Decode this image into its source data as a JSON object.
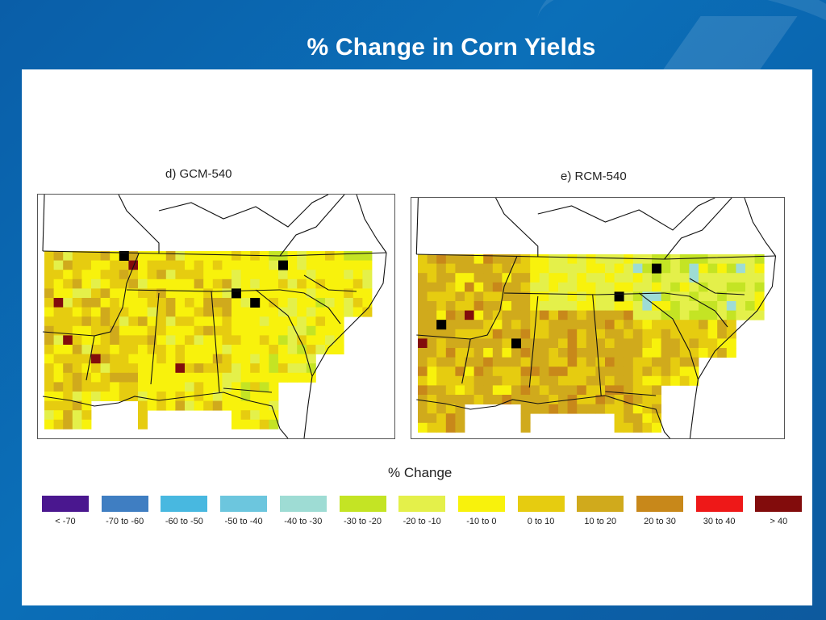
{
  "slide_title": "% Change in Corn Yields",
  "maps": [
    {
      "title": "d) GCM-540",
      "variant": "gcm"
    },
    {
      "title": "e) RCM-540",
      "variant": "rcm"
    }
  ],
  "legend": {
    "title": "% Change",
    "items": [
      {
        "label": "< -70",
        "color": "#4a178f"
      },
      {
        "label": "-70 to -60",
        "color": "#3f7ec2"
      },
      {
        "label": "-60 to -50",
        "color": "#48b8e0"
      },
      {
        "label": "-50 to -40",
        "color": "#6cc6de"
      },
      {
        "label": "-40 to -30",
        "color": "#9edcd4"
      },
      {
        "label": "-30 to -20",
        "color": "#c4e424"
      },
      {
        "label": "-20 to -10",
        "color": "#e4f04a"
      },
      {
        "label": "-10 to 0",
        "color": "#f8f20c"
      },
      {
        "label": "0 to 10",
        "color": "#e6cc10"
      },
      {
        "label": "10 to 20",
        "color": "#d0aa1c"
      },
      {
        "label": "20 to 30",
        "color": "#c8881a"
      },
      {
        "label": "30 to 40",
        "color": "#ee1818"
      },
      {
        "label": "> 40",
        "color": "#820c0c"
      }
    ]
  }
}
